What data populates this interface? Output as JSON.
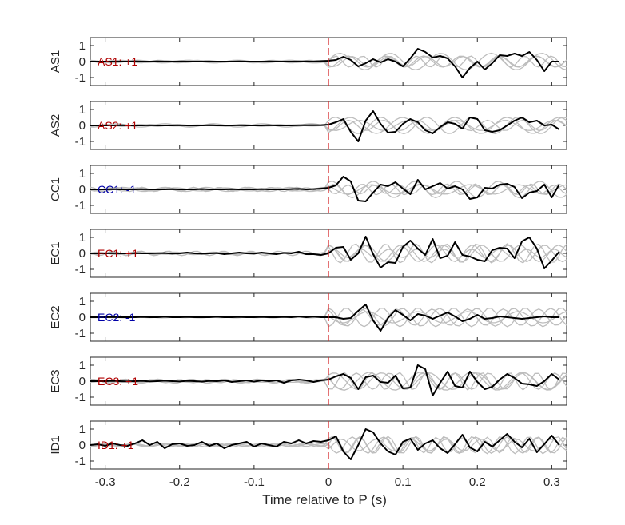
{
  "chart_data": {
    "type": "line",
    "xlabel": "Time relative to P (s)",
    "xlim": [
      -0.32,
      0.32
    ],
    "ylim": [
      -1.5,
      1.5
    ],
    "xticks": [
      -0.3,
      -0.2,
      -0.1,
      0,
      0.1,
      0.2,
      0.3
    ],
    "xtick_labels": [
      "-0.3",
      "-0.2",
      "-0.1",
      "0",
      "0.1",
      "0.2",
      "0.3"
    ],
    "yticks": [
      -1,
      0,
      1
    ],
    "ytick_labels": [
      "-1",
      "0",
      "1"
    ],
    "marker_line": {
      "x": 0,
      "color": "#d62728",
      "style": "dashed"
    },
    "colors": {
      "primary_trace": "#000000",
      "reference_traces": "#bdbdbd",
      "positive_label": "#b00000",
      "negative_label": "#0000a8"
    },
    "panels": [
      {
        "station": "AS1",
        "label": "AS1: +1",
        "polarity": "+1",
        "x": [
          -0.32,
          -0.31,
          -0.3,
          -0.29,
          -0.28,
          -0.27,
          -0.26,
          -0.25,
          -0.24,
          -0.23,
          -0.22,
          -0.21,
          -0.2,
          -0.19,
          -0.18,
          -0.17,
          -0.16,
          -0.15,
          -0.14,
          -0.13,
          -0.12,
          -0.11,
          -0.1,
          -0.09,
          -0.08,
          -0.07,
          -0.06,
          -0.05,
          -0.04,
          -0.03,
          -0.02,
          -0.01,
          0,
          0.01,
          0.02,
          0.03,
          0.04,
          0.05,
          0.06,
          0.07,
          0.08,
          0.09,
          0.1,
          0.11,
          0.12,
          0.13,
          0.14,
          0.15,
          0.16,
          0.17,
          0.18,
          0.19,
          0.2,
          0.21,
          0.22,
          0.23,
          0.24,
          0.25,
          0.26,
          0.27,
          0.28,
          0.29,
          0.3,
          0.31
        ],
        "y": [
          0,
          0,
          0,
          0.01,
          0,
          0,
          0.01,
          0,
          0,
          0.01,
          0,
          0,
          0.01,
          0,
          0,
          0,
          0.01,
          0,
          0,
          0,
          0.01,
          0,
          0,
          0,
          0.01,
          0,
          0,
          0,
          0.01,
          0.01,
          0,
          0.03,
          0.05,
          0.1,
          0.3,
          0.1,
          -0.3,
          -0.1,
          0.15,
          -0.05,
          0.15,
          0,
          -0.3,
          0.2,
          0.8,
          0.6,
          0.25,
          0.35,
          0.2,
          -0.3,
          -1,
          -0.4,
          0,
          -0.5,
          -0.1,
          0.4,
          0.35,
          0.5,
          0.35,
          0.6,
          0.1,
          -0.6,
          0,
          0
        ]
      },
      {
        "station": "AS2",
        "label": "AS2: +1",
        "polarity": "+1",
        "x": [
          -0.32,
          -0.31,
          -0.3,
          -0.29,
          -0.28,
          -0.27,
          -0.26,
          -0.25,
          -0.24,
          -0.23,
          -0.22,
          -0.21,
          -0.2,
          -0.19,
          -0.18,
          -0.17,
          -0.16,
          -0.15,
          -0.14,
          -0.13,
          -0.12,
          -0.11,
          -0.1,
          -0.09,
          -0.08,
          -0.07,
          -0.06,
          -0.05,
          -0.04,
          -0.03,
          -0.02,
          -0.01,
          0,
          0.01,
          0.02,
          0.03,
          0.04,
          0.05,
          0.06,
          0.07,
          0.08,
          0.09,
          0.1,
          0.11,
          0.12,
          0.13,
          0.14,
          0.15,
          0.16,
          0.17,
          0.18,
          0.19,
          0.2,
          0.21,
          0.22,
          0.23,
          0.24,
          0.25,
          0.26,
          0.27,
          0.28,
          0.29,
          0.3,
          0.31
        ],
        "y": [
          0,
          0,
          0,
          0,
          0.01,
          0,
          0,
          0,
          0.01,
          0,
          0,
          0,
          0.01,
          0,
          0,
          0,
          0.01,
          0,
          0,
          0,
          0.01,
          0,
          0,
          0,
          0.01,
          0,
          0,
          0,
          0.01,
          0.01,
          0.01,
          0.02,
          0.05,
          0.2,
          0.4,
          -0.4,
          -1,
          0.3,
          0.9,
          0.1,
          -0.45,
          -0.4,
          0.1,
          0.4,
          0.2,
          -0.3,
          -0.5,
          -0.1,
          0.2,
          0.1,
          -0.2,
          0.5,
          0.4,
          -0.3,
          -0.4,
          -0.3,
          0,
          0.3,
          0.5,
          0.2,
          0.3,
          0,
          0.05,
          -0.25
        ]
      },
      {
        "station": "CC1",
        "label": "CC1: -1",
        "polarity": "-1",
        "x": [
          -0.32,
          -0.31,
          -0.3,
          -0.29,
          -0.28,
          -0.27,
          -0.26,
          -0.25,
          -0.24,
          -0.23,
          -0.22,
          -0.21,
          -0.2,
          -0.19,
          -0.18,
          -0.17,
          -0.16,
          -0.15,
          -0.14,
          -0.13,
          -0.12,
          -0.11,
          -0.1,
          -0.09,
          -0.08,
          -0.07,
          -0.06,
          -0.05,
          -0.04,
          -0.03,
          -0.02,
          -0.01,
          0,
          0.01,
          0.02,
          0.03,
          0.04,
          0.05,
          0.06,
          0.07,
          0.08,
          0.09,
          0.1,
          0.11,
          0.12,
          0.13,
          0.14,
          0.15,
          0.16,
          0.17,
          0.18,
          0.19,
          0.2,
          0.21,
          0.22,
          0.23,
          0.24,
          0.25,
          0.26,
          0.27,
          0.28,
          0.29,
          0.3,
          0.31
        ],
        "y": [
          0,
          0,
          0,
          0.01,
          0,
          0,
          0,
          0.01,
          0,
          0,
          0,
          0.01,
          0,
          0,
          0,
          0.02,
          0,
          0,
          0,
          0.01,
          0,
          0,
          0,
          0.02,
          0,
          0,
          0,
          0.02,
          0.03,
          0,
          0.02,
          0.05,
          0.1,
          0.25,
          0.8,
          0.5,
          -0.7,
          -0.75,
          -0.2,
          0.3,
          0.2,
          0.45,
          0.05,
          -0.3,
          0.6,
          0,
          0.2,
          0.4,
          0.05,
          0.2,
          0,
          -0.6,
          -0.5,
          0.1,
          0.05,
          0.3,
          0.35,
          0.15,
          -0.55,
          -0.2,
          -0.1,
          0.3,
          -0.5,
          0.3
        ]
      },
      {
        "station": "EC1",
        "label": "EC1: +1",
        "polarity": "+1",
        "x": [
          -0.32,
          -0.31,
          -0.3,
          -0.29,
          -0.28,
          -0.27,
          -0.26,
          -0.25,
          -0.24,
          -0.23,
          -0.22,
          -0.21,
          -0.2,
          -0.19,
          -0.18,
          -0.17,
          -0.16,
          -0.15,
          -0.14,
          -0.13,
          -0.12,
          -0.11,
          -0.1,
          -0.09,
          -0.08,
          -0.07,
          -0.06,
          -0.05,
          -0.04,
          -0.03,
          -0.02,
          -0.01,
          0,
          0.01,
          0.02,
          0.03,
          0.04,
          0.05,
          0.06,
          0.07,
          0.08,
          0.09,
          0.1,
          0.11,
          0.12,
          0.13,
          0.14,
          0.15,
          0.16,
          0.17,
          0.18,
          0.19,
          0.2,
          0.21,
          0.22,
          0.23,
          0.24,
          0.25,
          0.26,
          0.27,
          0.28,
          0.29,
          0.3,
          0.31
        ],
        "y": [
          0,
          0,
          0,
          0.01,
          0,
          0,
          0.01,
          0,
          0,
          0.01,
          0.02,
          -0.02,
          0,
          0.05,
          0,
          -0.02,
          0,
          0.02,
          -0.05,
          0,
          0.05,
          0,
          -0.02,
          0.05,
          0,
          -0.05,
          0.03,
          0,
          0.1,
          -0.05,
          -0.05,
          -0.1,
          0,
          0.35,
          0.4,
          -0.4,
          0,
          1.05,
          -0.05,
          -0.9,
          -0.55,
          -0.6,
          0.4,
          0.8,
          0.3,
          -0.1,
          0.9,
          -0.3,
          -0.15,
          0.7,
          -0.1,
          -0.2,
          -0.4,
          -0.5,
          0.2,
          0.35,
          0.3,
          -0.3,
          0.75,
          1.0,
          0.3,
          -0.95,
          -0.45,
          0.1
        ]
      },
      {
        "station": "EC2",
        "label": "EC2: -1",
        "polarity": "-1",
        "x": [
          -0.32,
          -0.31,
          -0.3,
          -0.29,
          -0.28,
          -0.27,
          -0.26,
          -0.25,
          -0.24,
          -0.23,
          -0.22,
          -0.21,
          -0.2,
          -0.19,
          -0.18,
          -0.17,
          -0.16,
          -0.15,
          -0.14,
          -0.13,
          -0.12,
          -0.11,
          -0.1,
          -0.09,
          -0.08,
          -0.07,
          -0.06,
          -0.05,
          -0.04,
          -0.03,
          -0.02,
          -0.01,
          0,
          0.01,
          0.02,
          0.03,
          0.04,
          0.05,
          0.06,
          0.07,
          0.08,
          0.09,
          0.1,
          0.11,
          0.12,
          0.13,
          0.14,
          0.15,
          0.16,
          0.17,
          0.18,
          0.19,
          0.2,
          0.21,
          0.22,
          0.23,
          0.24,
          0.25,
          0.26,
          0.27,
          0.28,
          0.29,
          0.3,
          0.31
        ],
        "y": [
          0,
          0,
          0,
          0.01,
          0,
          0,
          0,
          0.02,
          0,
          0,
          0.03,
          0,
          0,
          0.02,
          0,
          0,
          0,
          0.03,
          0,
          0,
          0.02,
          0,
          0,
          0.02,
          0,
          0,
          0.02,
          0,
          0.05,
          0,
          0.04,
          0,
          0,
          0,
          -0.1,
          -0.05,
          0.4,
          0.8,
          -0.2,
          -0.85,
          -0.05,
          0.45,
          0.15,
          -0.2,
          0.2,
          0.1,
          -0.1,
          0.1,
          0.3,
          0.05,
          -0.25,
          -0.1,
          0.15,
          -0.1,
          -0.05,
          0.05,
          0,
          -0.05,
          -0.1,
          -0.05,
          0,
          0.05,
          0,
          0
        ]
      },
      {
        "station": "EC3",
        "label": "EC3: +1",
        "polarity": "+1",
        "x": [
          -0.32,
          -0.31,
          -0.3,
          -0.29,
          -0.28,
          -0.27,
          -0.26,
          -0.25,
          -0.24,
          -0.23,
          -0.22,
          -0.21,
          -0.2,
          -0.19,
          -0.18,
          -0.17,
          -0.16,
          -0.15,
          -0.14,
          -0.13,
          -0.12,
          -0.11,
          -0.1,
          -0.09,
          -0.08,
          -0.07,
          -0.06,
          -0.05,
          -0.04,
          -0.03,
          -0.02,
          -0.01,
          0,
          0.01,
          0.02,
          0.03,
          0.04,
          0.05,
          0.06,
          0.07,
          0.08,
          0.09,
          0.1,
          0.11,
          0.12,
          0.13,
          0.14,
          0.15,
          0.16,
          0.17,
          0.18,
          0.19,
          0.2,
          0.21,
          0.22,
          0.23,
          0.24,
          0.25,
          0.26,
          0.27,
          0.28,
          0.29,
          0.3,
          0.31
        ],
        "y": [
          0,
          0,
          0,
          0.02,
          0,
          -0.02,
          0,
          0.02,
          -0.02,
          0,
          0.03,
          0,
          -0.02,
          0.02,
          0,
          -0.03,
          0.02,
          0,
          0.05,
          -0.05,
          0,
          0.05,
          -0.03,
          0.05,
          0,
          0.05,
          -0.1,
          0.05,
          0.1,
          0.05,
          -0.05,
          0.05,
          0.1,
          0.3,
          0.45,
          0.2,
          -0.5,
          0.25,
          0.35,
          -0.05,
          -0.1,
          0.35,
          -0.45,
          -0.4,
          1.0,
          0.75,
          -0.9,
          -0.1,
          0.6,
          -0.3,
          -0.4,
          0.6,
          -0.05,
          -0.5,
          -0.35,
          0.1,
          0.45,
          0.2,
          -0.15,
          -0.2,
          -0.3,
          0,
          0.45,
          0.1
        ]
      },
      {
        "station": "ID1",
        "label": "ID1: +1",
        "polarity": "+1",
        "x": [
          -0.32,
          -0.31,
          -0.3,
          -0.29,
          -0.28,
          -0.27,
          -0.26,
          -0.25,
          -0.24,
          -0.23,
          -0.22,
          -0.21,
          -0.2,
          -0.19,
          -0.18,
          -0.17,
          -0.16,
          -0.15,
          -0.14,
          -0.13,
          -0.12,
          -0.11,
          -0.1,
          -0.09,
          -0.08,
          -0.07,
          -0.06,
          -0.05,
          -0.04,
          -0.03,
          -0.02,
          -0.01,
          0,
          0.01,
          0.02,
          0.03,
          0.04,
          0.05,
          0.06,
          0.07,
          0.08,
          0.09,
          0.1,
          0.11,
          0.12,
          0.13,
          0.14,
          0.15,
          0.16,
          0.17,
          0.18,
          0.19,
          0.2,
          0.21,
          0.22,
          0.23,
          0.24,
          0.25,
          0.26,
          0.27,
          0.28,
          0.29,
          0.3,
          0.31
        ],
        "y": [
          0,
          0.05,
          -0.05,
          0.1,
          0,
          -0.05,
          0.1,
          0.3,
          0,
          0.2,
          -0.2,
          0.05,
          0.1,
          -0.05,
          0,
          0.2,
          -0.05,
          0.1,
          -0.2,
          0,
          0.1,
          0.2,
          -0.1,
          0.1,
          0,
          -0.1,
          0.2,
          0.1,
          0.3,
          0.1,
          0.25,
          0.2,
          0.3,
          0.55,
          -0.4,
          -0.9,
          0,
          1.0,
          0.8,
          0.1,
          -0.4,
          -0.6,
          0.2,
          0.4,
          -0.3,
          0.1,
          0.3,
          -0.2,
          -0.5,
          0.05,
          0.65,
          -0.15,
          -0.4,
          0.2,
          -0.1,
          0.3,
          0.7,
          0.2,
          -0.15,
          0.4,
          -0.45,
          0.05,
          0.6,
          0
        ]
      }
    ]
  }
}
